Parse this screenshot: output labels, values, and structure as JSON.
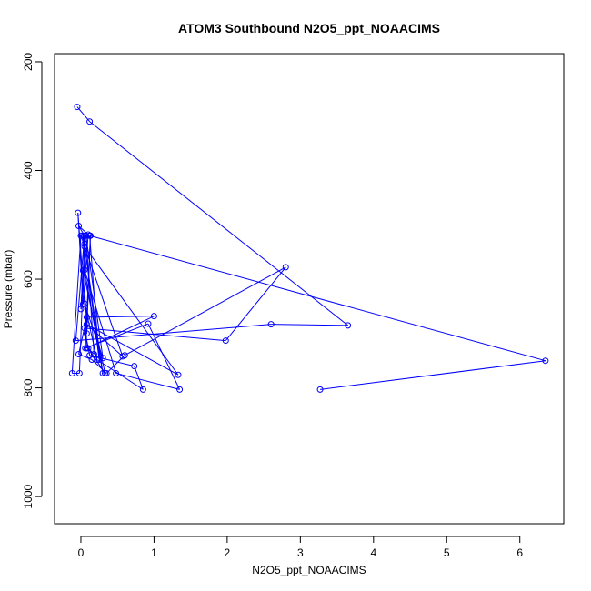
{
  "chart_data": {
    "type": "line",
    "title": "ATOM3 Southbound N2O5_ppt_NOAACIMS",
    "xlabel": "N2O5_ppt_NOAACIMS",
    "ylabel": "Pressure (mbar)",
    "xlim": [
      -0.36,
      6.6
    ],
    "ylim": [
      1050,
      185
    ],
    "y_reversed": true,
    "x_ticks": [
      0,
      1,
      2,
      3,
      4,
      5,
      6
    ],
    "x_tick_labels": [
      "0",
      "1",
      "2",
      "3",
      "4",
      "5",
      "6"
    ],
    "y_ticks": [
      200,
      400,
      600,
      800,
      1000
    ],
    "y_tick_labels": [
      "200",
      "400",
      "600",
      "800",
      "1000"
    ],
    "grid": false,
    "legend": "none",
    "series": [
      {
        "color": "#0000ff",
        "marker": "open-circle",
        "x": [
          -0.05,
          0.12,
          3.65,
          2.6,
          -0.07,
          0.05,
          -0.03,
          0.1,
          0.03,
          -0.04,
          0.08,
          0.13,
          0.06,
          0.92,
          1.35,
          0.48,
          0.05,
          0.3,
          0.03,
          0.08,
          1.0,
          0.08,
          -0.03,
          0.15,
          0.35,
          0.6,
          2.8,
          1.98,
          0.05,
          0.12,
          0.73,
          0.85,
          0.22,
          0.05,
          0.3,
          0.07,
          0.18,
          0.1,
          0.33,
          0.03,
          0.0,
          0.05,
          1.33,
          0.08,
          0.57,
          0.0,
          -0.12,
          -0.02,
          0.05,
          0.25,
          0.12,
          6.35,
          3.27
        ],
        "y": [
          283,
          310,
          685,
          683,
          713,
          520,
          502,
          518,
          646,
          478,
          700,
          520,
          727,
          682,
          803,
          773,
          583,
          773,
          520,
          727,
          668,
          670,
          738,
          748,
          773,
          740,
          578,
          713,
          690,
          740,
          760,
          803,
          748,
          645,
          745,
          520,
          738,
          727,
          773,
          584,
          655,
          540,
          776,
          683,
          742,
          520,
          773,
          773,
          535,
          748,
          520,
          750,
          803
        ]
      }
    ]
  }
}
